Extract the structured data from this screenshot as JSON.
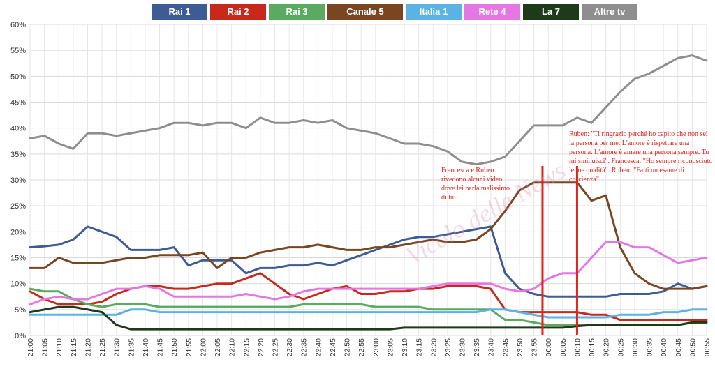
{
  "chart_data": {
    "type": "line",
    "ylim": [
      0,
      60
    ],
    "yticks": [
      "0%",
      "5%",
      "10%",
      "15%",
      "20%",
      "25%",
      "30%",
      "35%",
      "40%",
      "45%",
      "50%",
      "55%",
      "60%"
    ],
    "x": [
      "21:00",
      "21:05",
      "21:10",
      "21:15",
      "21:20",
      "21:25",
      "21:30",
      "21:35",
      "21:40",
      "21:45",
      "21:50",
      "21:55",
      "22:00",
      "22:05",
      "22:10",
      "22:15",
      "22:20",
      "22:25",
      "22:30",
      "22:35",
      "22:40",
      "22:45",
      "22:50",
      "22:55",
      "23:00",
      "23:05",
      "23:10",
      "23:15",
      "23:20",
      "23:25",
      "23:30",
      "23:35",
      "23:40",
      "23:45",
      "23:50",
      "23:55",
      "00:00",
      "00:05",
      "00:10",
      "00:15",
      "00:20",
      "00:25",
      "00:30",
      "00:35",
      "00:40",
      "00:45",
      "00:50",
      "00:55"
    ],
    "grid": true,
    "legend_position": "top",
    "series": [
      {
        "name": "Rai 1",
        "color": "#3d5c95",
        "values": [
          17,
          17.2,
          17.5,
          18.5,
          21,
          20,
          19,
          16.5,
          16.5,
          16.5,
          17,
          13.5,
          14.5,
          14.5,
          14.5,
          12,
          13,
          13,
          13.5,
          13.5,
          14,
          13.5,
          14.5,
          15.5,
          16.5,
          17.5,
          18.5,
          19,
          19,
          19.5,
          20,
          20.5,
          21,
          12,
          9,
          8,
          7.5,
          7.5,
          7.5,
          7.5,
          7.5,
          8,
          8,
          8,
          8.5,
          10,
          9,
          9.5
        ]
      },
      {
        "name": "Rai 2",
        "color": "#c8291d",
        "values": [
          8.5,
          7,
          6,
          6,
          6,
          6.5,
          8,
          9,
          9.5,
          9.5,
          9,
          9,
          9.5,
          10,
          10,
          11,
          12,
          10,
          8,
          7,
          8,
          9,
          9.5,
          8,
          8,
          8.5,
          8.5,
          9,
          9,
          9.5,
          9.5,
          9.5,
          9,
          5,
          4.5,
          4.5,
          4.5,
          4.5,
          4.5,
          4,
          4,
          3,
          3,
          3,
          3,
          3,
          3,
          3
        ]
      },
      {
        "name": "Rai 3",
        "color": "#5aab5f",
        "values": [
          9,
          8.5,
          8.5,
          7,
          6,
          5.5,
          6,
          6,
          6,
          5.5,
          5.5,
          5.5,
          5.5,
          5.5,
          5.5,
          5.5,
          5.5,
          5.5,
          5.5,
          6,
          6,
          6,
          6,
          6,
          5.5,
          5.5,
          5.5,
          5.5,
          5,
          5,
          5,
          5,
          5,
          3,
          3,
          2.5,
          2,
          2,
          2,
          2,
          2,
          2,
          2,
          2,
          2,
          2,
          2.5,
          2.5
        ]
      },
      {
        "name": "Canale 5",
        "color": "#7a4521",
        "values": [
          13,
          13,
          15,
          14,
          14,
          14,
          14.5,
          15,
          15,
          15.5,
          15.5,
          15.5,
          16,
          13,
          15,
          15,
          16,
          16.5,
          17,
          17,
          17.5,
          17,
          16.5,
          16.5,
          17,
          17,
          17.5,
          18,
          18.5,
          18,
          18,
          18.5,
          20.5,
          24,
          28,
          29.5,
          29.5,
          29.5,
          29.5,
          26,
          27,
          17,
          12,
          10,
          9,
          9,
          9,
          9.5
        ]
      },
      {
        "name": "Italia 1",
        "color": "#5ab3e2",
        "values": [
          4,
          4,
          4,
          4,
          4,
          4,
          4,
          5,
          5,
          4.5,
          4.5,
          4.5,
          4.5,
          4.5,
          4.5,
          4.5,
          4.5,
          4.5,
          4.5,
          4.5,
          4.5,
          4.5,
          4.5,
          4.5,
          4.5,
          4.5,
          4.5,
          4.5,
          4.5,
          4.5,
          4.5,
          4.5,
          5,
          5,
          4.5,
          4,
          3.5,
          3.5,
          3.5,
          3.5,
          3.5,
          4,
          4,
          4,
          4.5,
          4.5,
          5,
          5
        ]
      },
      {
        "name": "Rete 4",
        "color": "#e577e5",
        "values": [
          6,
          7,
          7.5,
          7,
          7,
          8,
          9,
          9,
          9.5,
          9,
          7.5,
          7.5,
          7.5,
          7.5,
          7.5,
          8,
          7.5,
          7,
          7.5,
          8.5,
          9,
          9,
          9,
          9,
          9,
          9,
          9,
          9,
          9.5,
          10,
          10,
          10,
          10,
          9,
          8.5,
          9,
          11,
          12,
          12,
          15,
          18,
          18,
          17,
          17,
          15.5,
          14,
          14.5,
          15
        ]
      },
      {
        "name": "La 7",
        "color": "#1f3a18",
        "values": [
          4.5,
          5,
          5.5,
          5.5,
          5,
          4.5,
          2,
          1.2,
          1.2,
          1.2,
          1.2,
          1.2,
          1.2,
          1.2,
          1.2,
          1.2,
          1.2,
          1.2,
          1.2,
          1.2,
          1.2,
          1.2,
          1.2,
          1.2,
          1.2,
          1.2,
          1.5,
          1.5,
          1.5,
          1.5,
          1.5,
          1.5,
          1.5,
          1.5,
          1.5,
          1.5,
          1.5,
          1.5,
          1.8,
          2,
          2,
          2,
          2,
          2,
          2,
          2,
          2.5,
          2.5
        ]
      },
      {
        "name": "Altre tv",
        "color": "#8e8e8e",
        "values": [
          38,
          38.5,
          37,
          36,
          39,
          39,
          38.5,
          39,
          39.5,
          40,
          41,
          41,
          40.5,
          41,
          41,
          40,
          42,
          41,
          41,
          41.5,
          41,
          41.5,
          40,
          39.5,
          39,
          38,
          37,
          37,
          36.5,
          35.5,
          33.5,
          33,
          33.5,
          34.5,
          37.5,
          40.5,
          40.5,
          40.5,
          42,
          41,
          44,
          47,
          49.5,
          50.5,
          52,
          53.5,
          54,
          53
        ]
      }
    ],
    "annotations": [
      "Francesca e Ruben rivedono alcuni video dove lei parla malissimo di lui.",
      "Ruben: \"Ti ringrazio perché ho capito che non sei la persona per me. L'amore è rispettare una persona. L'amore è amare una persona sempre. Tu mi sminuisci\". Francesca: \"Ho sempre riconosciuto le tue qualità\". Ruben: \"Fatti un esame di coscienza\"."
    ],
    "markers": [
      "23:58",
      "00:10"
    ],
    "marker_color": "#e2231a",
    "watermark": "Vicolo delle News"
  }
}
